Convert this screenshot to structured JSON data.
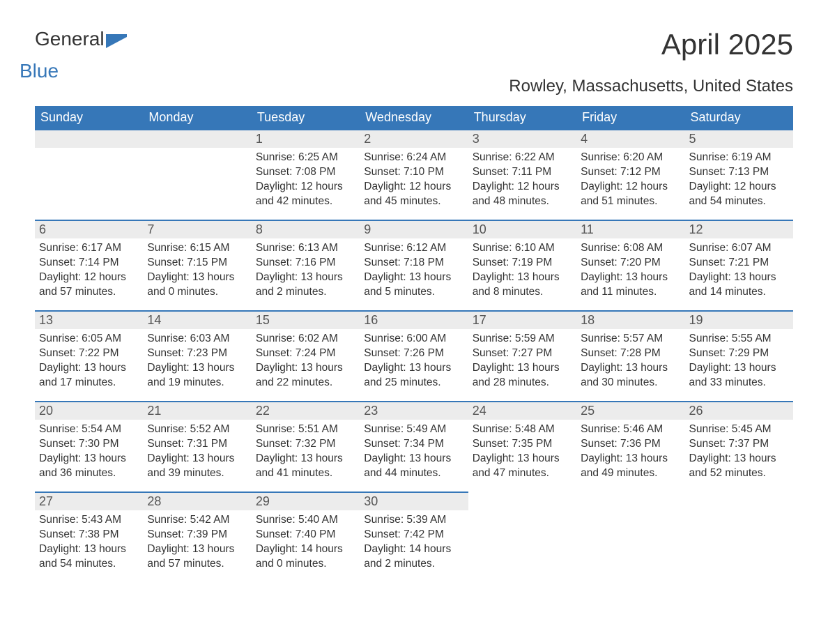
{
  "branding": {
    "word1": "General",
    "word2": "Blue",
    "color_dark": "#333333",
    "color_blue": "#3677b8"
  },
  "title": "April 2025",
  "subtitle": "Rowley, Massachusetts, United States",
  "styling": {
    "header_bg": "#3677b8",
    "header_text": "#ffffff",
    "daynum_bg": "#ececec",
    "daynum_border": "#3677b8",
    "body_text": "#333333",
    "page_bg": "#ffffff",
    "title_fontsize": 42,
    "subtitle_fontsize": 24,
    "th_fontsize": 18,
    "daynum_fontsize": 18,
    "cell_fontsize": 15.5
  },
  "weekdays": [
    "Sunday",
    "Monday",
    "Tuesday",
    "Wednesday",
    "Thursday",
    "Friday",
    "Saturday"
  ],
  "weeks": [
    [
      {
        "day": "",
        "sunrise": "",
        "sunset": "",
        "daylight": ""
      },
      {
        "day": "",
        "sunrise": "",
        "sunset": "",
        "daylight": ""
      },
      {
        "day": "1",
        "sunrise": "Sunrise: 6:25 AM",
        "sunset": "Sunset: 7:08 PM",
        "daylight": "Daylight: 12 hours and 42 minutes."
      },
      {
        "day": "2",
        "sunrise": "Sunrise: 6:24 AM",
        "sunset": "Sunset: 7:10 PM",
        "daylight": "Daylight: 12 hours and 45 minutes."
      },
      {
        "day": "3",
        "sunrise": "Sunrise: 6:22 AM",
        "sunset": "Sunset: 7:11 PM",
        "daylight": "Daylight: 12 hours and 48 minutes."
      },
      {
        "day": "4",
        "sunrise": "Sunrise: 6:20 AM",
        "sunset": "Sunset: 7:12 PM",
        "daylight": "Daylight: 12 hours and 51 minutes."
      },
      {
        "day": "5",
        "sunrise": "Sunrise: 6:19 AM",
        "sunset": "Sunset: 7:13 PM",
        "daylight": "Daylight: 12 hours and 54 minutes."
      }
    ],
    [
      {
        "day": "6",
        "sunrise": "Sunrise: 6:17 AM",
        "sunset": "Sunset: 7:14 PM",
        "daylight": "Daylight: 12 hours and 57 minutes."
      },
      {
        "day": "7",
        "sunrise": "Sunrise: 6:15 AM",
        "sunset": "Sunset: 7:15 PM",
        "daylight": "Daylight: 13 hours and 0 minutes."
      },
      {
        "day": "8",
        "sunrise": "Sunrise: 6:13 AM",
        "sunset": "Sunset: 7:16 PM",
        "daylight": "Daylight: 13 hours and 2 minutes."
      },
      {
        "day": "9",
        "sunrise": "Sunrise: 6:12 AM",
        "sunset": "Sunset: 7:18 PM",
        "daylight": "Daylight: 13 hours and 5 minutes."
      },
      {
        "day": "10",
        "sunrise": "Sunrise: 6:10 AM",
        "sunset": "Sunset: 7:19 PM",
        "daylight": "Daylight: 13 hours and 8 minutes."
      },
      {
        "day": "11",
        "sunrise": "Sunrise: 6:08 AM",
        "sunset": "Sunset: 7:20 PM",
        "daylight": "Daylight: 13 hours and 11 minutes."
      },
      {
        "day": "12",
        "sunrise": "Sunrise: 6:07 AM",
        "sunset": "Sunset: 7:21 PM",
        "daylight": "Daylight: 13 hours and 14 minutes."
      }
    ],
    [
      {
        "day": "13",
        "sunrise": "Sunrise: 6:05 AM",
        "sunset": "Sunset: 7:22 PM",
        "daylight": "Daylight: 13 hours and 17 minutes."
      },
      {
        "day": "14",
        "sunrise": "Sunrise: 6:03 AM",
        "sunset": "Sunset: 7:23 PM",
        "daylight": "Daylight: 13 hours and 19 minutes."
      },
      {
        "day": "15",
        "sunrise": "Sunrise: 6:02 AM",
        "sunset": "Sunset: 7:24 PM",
        "daylight": "Daylight: 13 hours and 22 minutes."
      },
      {
        "day": "16",
        "sunrise": "Sunrise: 6:00 AM",
        "sunset": "Sunset: 7:26 PM",
        "daylight": "Daylight: 13 hours and 25 minutes."
      },
      {
        "day": "17",
        "sunrise": "Sunrise: 5:59 AM",
        "sunset": "Sunset: 7:27 PM",
        "daylight": "Daylight: 13 hours and 28 minutes."
      },
      {
        "day": "18",
        "sunrise": "Sunrise: 5:57 AM",
        "sunset": "Sunset: 7:28 PM",
        "daylight": "Daylight: 13 hours and 30 minutes."
      },
      {
        "day": "19",
        "sunrise": "Sunrise: 5:55 AM",
        "sunset": "Sunset: 7:29 PM",
        "daylight": "Daylight: 13 hours and 33 minutes."
      }
    ],
    [
      {
        "day": "20",
        "sunrise": "Sunrise: 5:54 AM",
        "sunset": "Sunset: 7:30 PM",
        "daylight": "Daylight: 13 hours and 36 minutes."
      },
      {
        "day": "21",
        "sunrise": "Sunrise: 5:52 AM",
        "sunset": "Sunset: 7:31 PM",
        "daylight": "Daylight: 13 hours and 39 minutes."
      },
      {
        "day": "22",
        "sunrise": "Sunrise: 5:51 AM",
        "sunset": "Sunset: 7:32 PM",
        "daylight": "Daylight: 13 hours and 41 minutes."
      },
      {
        "day": "23",
        "sunrise": "Sunrise: 5:49 AM",
        "sunset": "Sunset: 7:34 PM",
        "daylight": "Daylight: 13 hours and 44 minutes."
      },
      {
        "day": "24",
        "sunrise": "Sunrise: 5:48 AM",
        "sunset": "Sunset: 7:35 PM",
        "daylight": "Daylight: 13 hours and 47 minutes."
      },
      {
        "day": "25",
        "sunrise": "Sunrise: 5:46 AM",
        "sunset": "Sunset: 7:36 PM",
        "daylight": "Daylight: 13 hours and 49 minutes."
      },
      {
        "day": "26",
        "sunrise": "Sunrise: 5:45 AM",
        "sunset": "Sunset: 7:37 PM",
        "daylight": "Daylight: 13 hours and 52 minutes."
      }
    ],
    [
      {
        "day": "27",
        "sunrise": "Sunrise: 5:43 AM",
        "sunset": "Sunset: 7:38 PM",
        "daylight": "Daylight: 13 hours and 54 minutes."
      },
      {
        "day": "28",
        "sunrise": "Sunrise: 5:42 AM",
        "sunset": "Sunset: 7:39 PM",
        "daylight": "Daylight: 13 hours and 57 minutes."
      },
      {
        "day": "29",
        "sunrise": "Sunrise: 5:40 AM",
        "sunset": "Sunset: 7:40 PM",
        "daylight": "Daylight: 14 hours and 0 minutes."
      },
      {
        "day": "30",
        "sunrise": "Sunrise: 5:39 AM",
        "sunset": "Sunset: 7:42 PM",
        "daylight": "Daylight: 14 hours and 2 minutes."
      },
      {
        "day": "",
        "sunrise": "",
        "sunset": "",
        "daylight": ""
      },
      {
        "day": "",
        "sunrise": "",
        "sunset": "",
        "daylight": ""
      },
      {
        "day": "",
        "sunrise": "",
        "sunset": "",
        "daylight": ""
      }
    ]
  ]
}
